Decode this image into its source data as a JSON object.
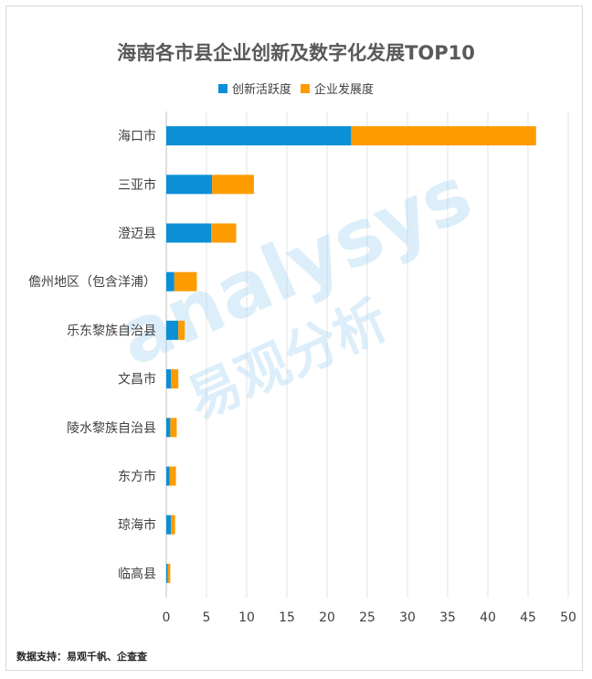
{
  "chart_data": {
    "type": "bar",
    "orientation": "horizontal",
    "stacked": true,
    "title": "海南各市县企业创新及数字化发展TOP10",
    "categories": [
      "海口市",
      "三亚市",
      "澄迈县",
      "儋州地区（包含洋浦）",
      "乐东黎族自治县",
      "文昌市",
      "陵水黎族自治县",
      "东方市",
      "琼海市",
      "临高县"
    ],
    "series": [
      {
        "name": "创新活跃度",
        "color": "#0b8fd6",
        "values": [
          23.0,
          5.7,
          5.6,
          1.0,
          1.5,
          0.6,
          0.5,
          0.4,
          0.6,
          0.2
        ]
      },
      {
        "name": "企业发展度",
        "color": "#fd9c00",
        "values": [
          23.0,
          5.2,
          3.1,
          2.8,
          0.8,
          0.9,
          0.8,
          0.8,
          0.5,
          0.3
        ]
      }
    ],
    "xlim": [
      0,
      50
    ],
    "xticks": [
      0,
      5,
      10,
      15,
      20,
      25,
      30,
      35,
      40,
      45,
      50
    ],
    "grid": true,
    "legend_position": "top"
  },
  "watermark": {
    "text_en": "analysys",
    "text_cn": "易观分析"
  },
  "source": "数据支持：易观千帆、企查查"
}
